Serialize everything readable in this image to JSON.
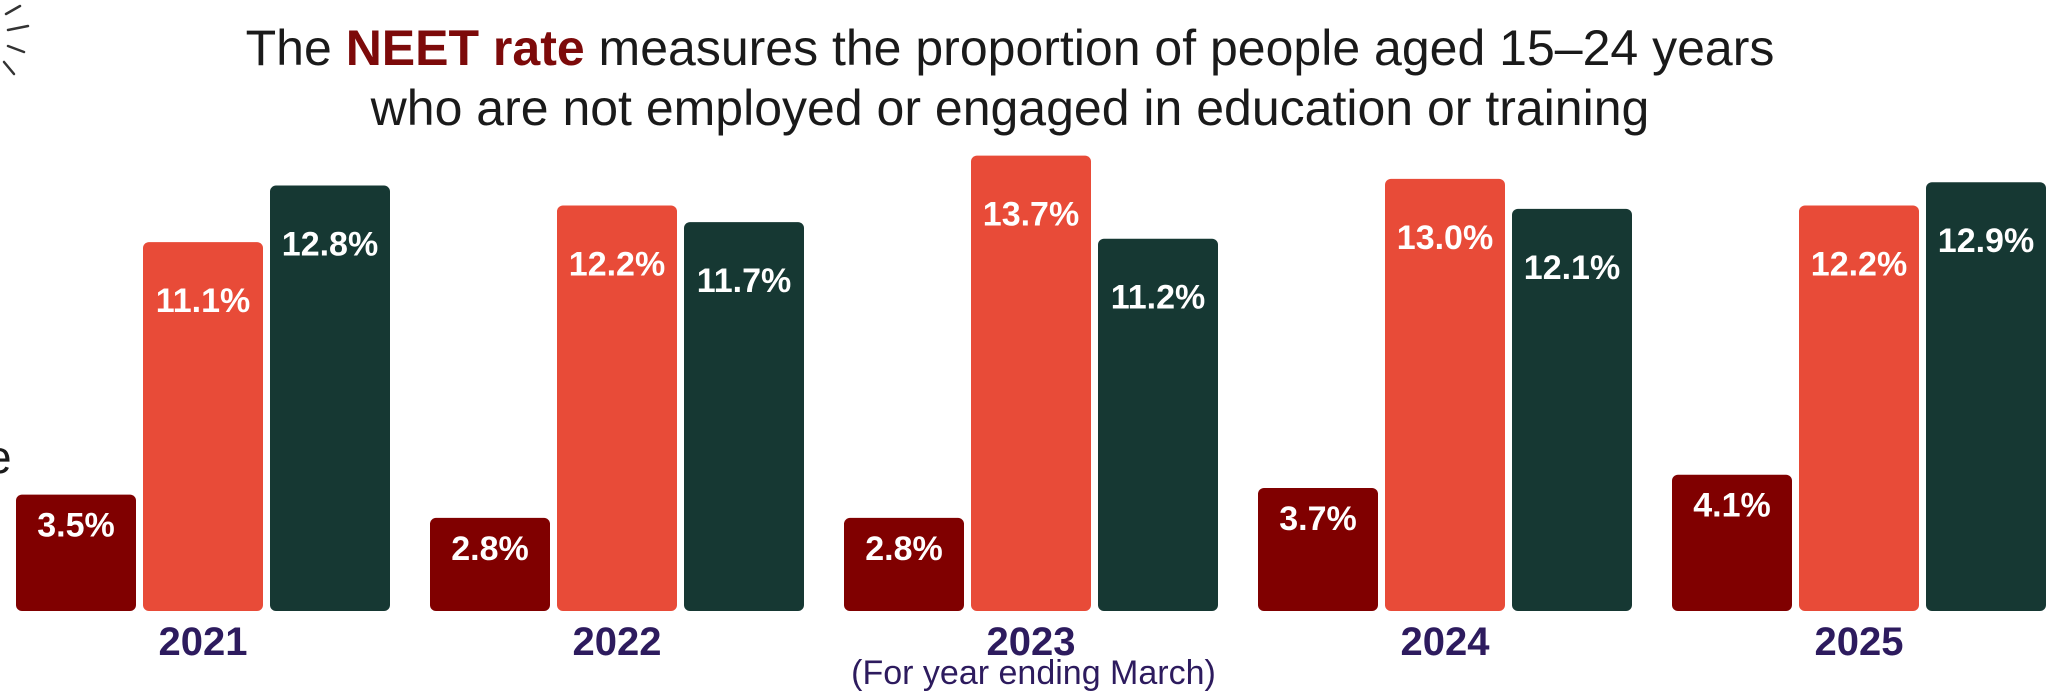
{
  "header": {
    "title_prefix": "The ",
    "title_highlight": "NEET rate",
    "title_line1_rest": " measures the proportion of people aged 15–24 years",
    "title_line2": "who are not employed or engaged in education or training"
  },
  "colors": {
    "series1": "#800000",
    "series2": "#e84b38",
    "series3": "#163833",
    "highlight": "#7d0a0a",
    "year_text": "#2d1b5e"
  },
  "chart_data": {
    "type": "bar",
    "categories": [
      "2021",
      "2022",
      "2023",
      "2024",
      "2025"
    ],
    "series": [
      {
        "values": [
          3.5,
          2.8,
          2.8,
          3.7,
          4.1
        ],
        "labels": [
          "3.5%",
          "2.8%",
          "2.8%",
          "3.7%",
          "4.1%"
        ]
      },
      {
        "values": [
          11.1,
          12.2,
          13.7,
          13.0,
          12.2
        ],
        "labels": [
          "11.1%",
          "12.2%",
          "13.7%",
          "13.0%",
          "12.2%"
        ]
      },
      {
        "values": [
          12.8,
          11.7,
          11.2,
          12.1,
          12.9
        ],
        "labels": [
          "12.8%",
          "11.7%",
          "11.2%",
          "12.1%",
          "12.9%"
        ]
      }
    ],
    "xlabel": "(For year ending March)",
    "ylabel": "",
    "ylim": [
      0,
      13.9
    ],
    "grid": false,
    "data_labels": true
  }
}
